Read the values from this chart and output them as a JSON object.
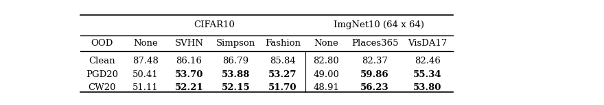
{
  "col_groups": [
    {
      "label": "CIFAR10",
      "cols": [
        "None",
        "SVHN",
        "Simpson",
        "Fashion"
      ]
    },
    {
      "label": "ImgNet10 (64 x 64)",
      "cols": [
        "None",
        "Places365",
        "VisDA17"
      ]
    }
  ],
  "row_header": "OOD",
  "rows": [
    {
      "label": "Clean",
      "cifar10": [
        "87.48",
        "86.16",
        "86.79",
        "85.84"
      ],
      "imgnet10": [
        "82.80",
        "82.37",
        "82.46"
      ]
    },
    {
      "label": "PGD20",
      "cifar10": [
        "50.41",
        "53.70",
        "53.88",
        "53.27"
      ],
      "imgnet10": [
        "49.00",
        "59.86",
        "55.34"
      ]
    },
    {
      "label": "CW20",
      "cifar10": [
        "51.11",
        "52.21",
        "52.15",
        "51.70"
      ],
      "imgnet10": [
        "48.91",
        "56.23",
        "53.80"
      ]
    }
  ],
  "bold_cells": {
    "PGD20": {
      "cifar10": [
        1,
        2,
        3
      ],
      "imgnet10": [
        1,
        2
      ]
    },
    "CW20": {
      "cifar10": [
        1,
        2,
        3
      ],
      "imgnet10": [
        1,
        2
      ]
    }
  },
  "figsize": [
    8.8,
    1.54
  ],
  "dpi": 100,
  "fontsize": 9.5
}
